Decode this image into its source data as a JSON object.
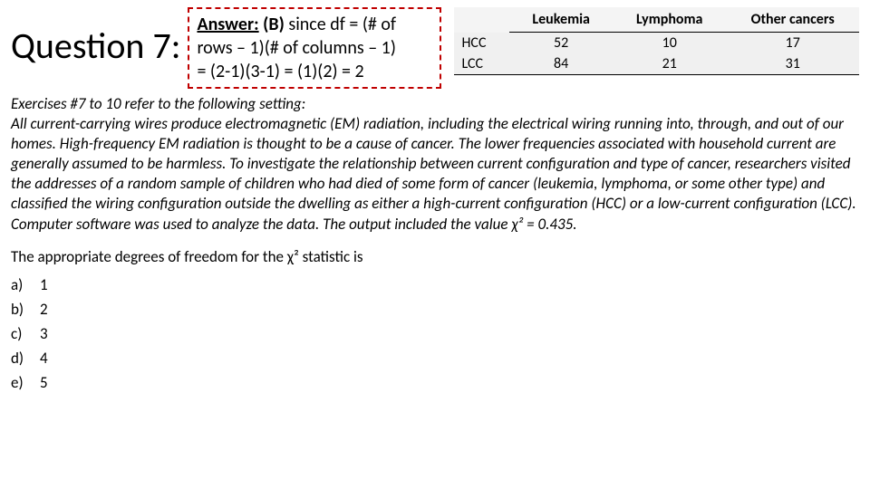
{
  "header": {
    "question_label": "Question 7:",
    "answer_label": "Answer:",
    "answer_choice": "(B)",
    "answer_text_1": "since df = (# of",
    "answer_text_2": "rows – 1)(# of columns – 1)",
    "answer_text_3": "= (2-1)(3-1) = (1)(2) = 2"
  },
  "table": {
    "columns": [
      "",
      "Leukemia",
      "Lymphoma",
      "Other cancers"
    ],
    "rows": [
      [
        "HCC",
        "52",
        "10",
        "17"
      ],
      [
        "LCC",
        "84",
        "21",
        "31"
      ]
    ],
    "header_bg": "#f4f4f4",
    "cell_bg": "#f0f0f0",
    "border_color": "#000000"
  },
  "context": {
    "line1": "Exercises #7 to 10 refer to the following setting:",
    "body": "All current-carrying wires produce electromagnetic (EM) radiation, including the electrical wiring running into, through, and out of our homes. High-frequency EM radiation is thought to be a cause of cancer. The lower frequencies associated with household current are generally assumed to be harmless. To investigate the relationship between current configuration and type of cancer, researchers visited the addresses of a random sample of children who had died of some form of cancer (leukemia, lymphoma, or some other type) and classified the wiring configuration outside the dwelling as either a high-current configuration (HCC) or a low-current configuration (LCC). Computer software was used to analyze the data. The output included the value χ² = 0.435."
  },
  "stem": "The appropriate degrees of freedom for the χ² statistic is",
  "options": [
    {
      "letter": "a)",
      "text": "1"
    },
    {
      "letter": "b)",
      "text": "2"
    },
    {
      "letter": "c)",
      "text": "3"
    },
    {
      "letter": "d)",
      "text": "4"
    },
    {
      "letter": "e)",
      "text": "5"
    }
  ],
  "colors": {
    "answer_border": "#c00000",
    "text": "#000000",
    "background": "#ffffff"
  }
}
